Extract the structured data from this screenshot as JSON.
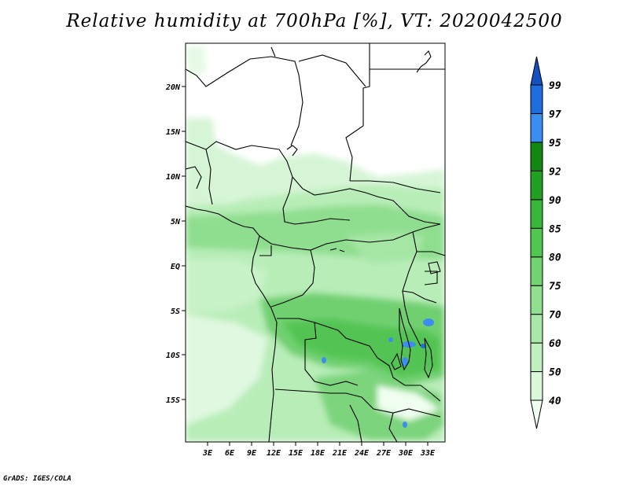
{
  "title": "Relative humidity at 700hPa [%], VT: 2020042500",
  "credit": "GrADS: IGES/COLA",
  "map": {
    "variable": "Relative humidity",
    "level": "700hPa",
    "valid_time": "2020042500",
    "lat_labels": [
      "20N",
      "15N",
      "10N",
      "5N",
      "EQ",
      "5S",
      "10S",
      "15S"
    ],
    "lon_labels": [
      "3E",
      "6E",
      "9E",
      "12E",
      "15E",
      "18E",
      "21E",
      "24E",
      "27E",
      "30E",
      "33E"
    ]
  },
  "colorbar": {
    "levels": [
      "40",
      "50",
      "60",
      "70",
      "75",
      "80",
      "85",
      "90",
      "92",
      "95",
      "97",
      "99"
    ],
    "colors": [
      "#f0fff0",
      "#d8f8d8",
      "#c0f0c0",
      "#a8e8a8",
      "#90e090",
      "#70d470",
      "#50c850",
      "#38b838",
      "#22a022",
      "#128812",
      "#3a8ef0",
      "#1e6ee0",
      "#1450c0"
    ]
  }
}
